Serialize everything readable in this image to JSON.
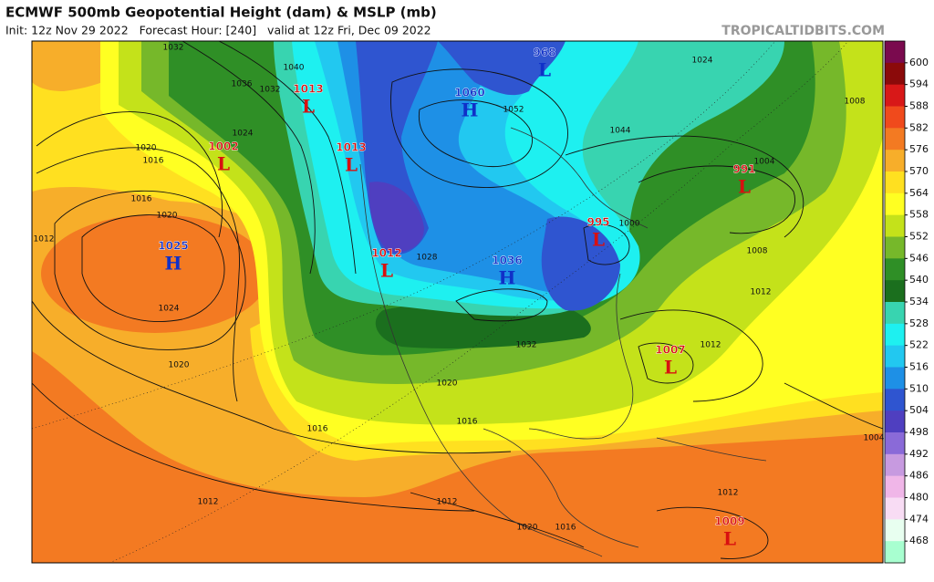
{
  "header": {
    "title": "ECMWF 500mb Geopotential Height (dam) & MSLP (mb)",
    "subtitle": "Init: 12z Nov 29 2022   Forecast Hour: [240]   valid at 12z Fri, Dec 09 2022",
    "watermark": "TROPICALTIDBITS.COM"
  },
  "colorbar": {
    "labels": [
      600,
      594,
      588,
      582,
      576,
      570,
      564,
      558,
      552,
      546,
      540,
      534,
      528,
      522,
      516,
      510,
      504,
      498,
      492,
      486,
      480,
      474,
      468
    ],
    "colors": [
      "#7a0a4e",
      "#8b0a0a",
      "#d81818",
      "#f04a1c",
      "#f37a22",
      "#f7ae2a",
      "#ffe020",
      "#ffff22",
      "#c4e21a",
      "#76b82a",
      "#2f8f26",
      "#1b6f1e",
      "#38d4b0",
      "#1ef0f0",
      "#22c8f0",
      "#1e90e6",
      "#2f55d0",
      "#4f3fc0",
      "#8a6ad8",
      "#c79ae0",
      "#f0b6e8",
      "#f8dcf4",
      "#e8fff0",
      "#a8ffd0"
    ]
  },
  "centers": [
    {
      "letter": "L",
      "value": "1013"
    },
    {
      "letter": "L",
      "value": "1002"
    },
    {
      "letter": "L",
      "value": "1013"
    },
    {
      "letter": "H",
      "value": "1025"
    },
    {
      "letter": "L",
      "value": "1012"
    },
    {
      "letter": "H",
      "value": "1036"
    },
    {
      "letter": "H",
      "value": "1060"
    },
    {
      "letter": "L",
      "value": "968"
    },
    {
      "letter": "L",
      "value": "995"
    },
    {
      "letter": "L",
      "value": "991"
    },
    {
      "letter": "L",
      "value": "1007"
    },
    {
      "letter": "L",
      "value": "1009"
    }
  ],
  "isobar_labels": [
    "1032",
    "1040",
    "1036",
    "1032",
    "1024",
    "1020",
    "1016",
    "1016",
    "1012",
    "1020",
    "1024",
    "1020",
    "1016",
    "1012",
    "1016",
    "1020",
    "1028",
    "1052",
    "1044",
    "1024",
    "1008",
    "1004",
    "1000",
    "1008",
    "1012",
    "1012",
    "1012",
    "1012",
    "1020",
    "1016",
    "1032",
    "1004"
  ]
}
